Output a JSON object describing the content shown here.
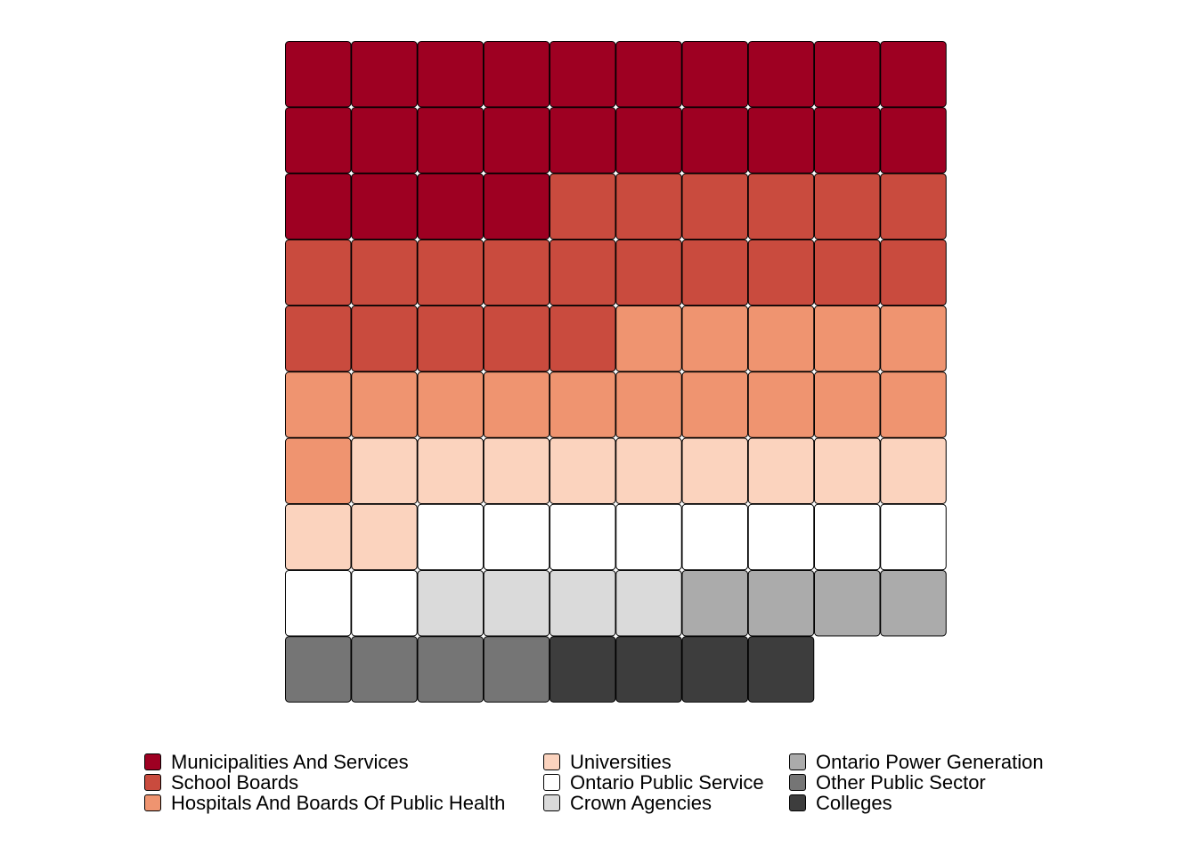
{
  "chart_data": {
    "type": "waffle",
    "grid": {
      "rows": 10,
      "cols": 10
    },
    "fill_order": "row-major from top-left",
    "categories": [
      {
        "name": "Municipalities And Services",
        "count": 24,
        "color": "#9E0022"
      },
      {
        "name": "School Boards",
        "count": 21,
        "color": "#C94B3E"
      },
      {
        "name": "Hospitals And Boards Of Public Health",
        "count": 16,
        "color": "#EF9470"
      },
      {
        "name": "Universities",
        "count": 11,
        "color": "#FBD3BE"
      },
      {
        "name": "Ontario Public Service",
        "count": 10,
        "color": "#FFFFFF"
      },
      {
        "name": "Crown Agencies",
        "count": 4,
        "color": "#DADADA"
      },
      {
        "name": "Ontario Power Generation",
        "count": 4,
        "color": "#ABABAB"
      },
      {
        "name": "Other Public Sector",
        "count": 4,
        "color": "#757575"
      },
      {
        "name": "Colleges",
        "count": 4,
        "color": "#3D3D3D"
      }
    ],
    "legend_position": "bottom",
    "legend_columns": 3
  }
}
